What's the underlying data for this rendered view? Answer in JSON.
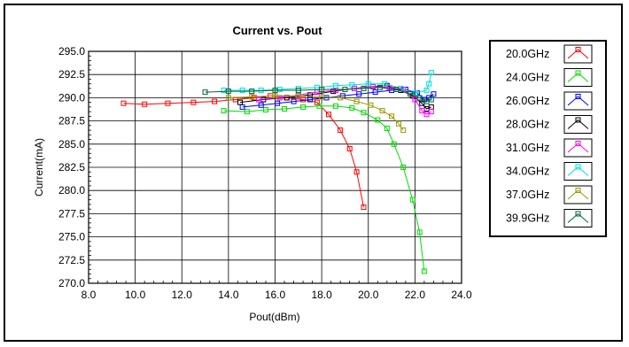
{
  "chart_data": {
    "type": "line",
    "title": "Current vs. Pout",
    "xlabel": "Pout(dBm)",
    "ylabel": "Current(mA)",
    "xlim": [
      8.0,
      24.0
    ],
    "ylim": [
      270.0,
      295.0
    ],
    "xticks": [
      "8.0",
      "10.0",
      "12.0",
      "14.0",
      "16.0",
      "18.0",
      "20.0",
      "22.0",
      "24.0"
    ],
    "yticks": [
      "270.0",
      "272.5",
      "275.0",
      "277.5",
      "280.0",
      "282.5",
      "285.0",
      "287.5",
      "290.0",
      "292.5",
      "295.0"
    ],
    "grid": true,
    "legend_position": "right",
    "series": [
      {
        "name": "20.0GHz",
        "color": "#ff0000",
        "points": [
          [
            9.5,
            289.4
          ],
          [
            10.4,
            289.3
          ],
          [
            11.4,
            289.4
          ],
          [
            12.5,
            289.5
          ],
          [
            13.4,
            289.6
          ],
          [
            14.3,
            289.8
          ],
          [
            15.1,
            290.0
          ],
          [
            15.8,
            290.2
          ],
          [
            16.5,
            290.0
          ],
          [
            17.2,
            289.8
          ],
          [
            17.8,
            289.5
          ],
          [
            18.3,
            288.2
          ],
          [
            18.8,
            286.5
          ],
          [
            19.2,
            284.5
          ],
          [
            19.5,
            282.0
          ],
          [
            19.8,
            278.2
          ]
        ]
      },
      {
        "name": "24.0GHz",
        "color": "#00dd00",
        "points": [
          [
            13.8,
            288.6
          ],
          [
            14.8,
            288.5
          ],
          [
            15.6,
            288.7
          ],
          [
            16.4,
            288.8
          ],
          [
            17.2,
            289.0
          ],
          [
            17.9,
            289.1
          ],
          [
            18.6,
            289.1
          ],
          [
            19.3,
            288.9
          ],
          [
            19.8,
            288.4
          ],
          [
            20.4,
            287.6
          ],
          [
            20.8,
            286.7
          ],
          [
            21.1,
            285.0
          ],
          [
            21.5,
            282.5
          ],
          [
            21.9,
            279.0
          ],
          [
            22.2,
            275.5
          ],
          [
            22.4,
            271.3
          ]
        ]
      },
      {
        "name": "26.0GHz",
        "color": "#0000ff",
        "points": [
          [
            14.6,
            289.0
          ],
          [
            15.4,
            289.2
          ],
          [
            16.1,
            289.4
          ],
          [
            16.8,
            289.6
          ],
          [
            17.5,
            289.8
          ],
          [
            18.2,
            290.0
          ],
          [
            18.9,
            290.2
          ],
          [
            19.6,
            290.4
          ],
          [
            20.3,
            290.6
          ],
          [
            21.0,
            290.8
          ],
          [
            21.6,
            290.9
          ],
          [
            22.1,
            290.5
          ],
          [
            22.4,
            289.8
          ],
          [
            22.6,
            290.0
          ],
          [
            22.8,
            290.4
          ]
        ]
      },
      {
        "name": "28.0GHz",
        "color": "#000000",
        "points": [
          [
            14.5,
            289.5
          ],
          [
            15.5,
            289.8
          ],
          [
            16.5,
            290.0
          ],
          [
            17.5,
            290.3
          ],
          [
            18.5,
            290.7
          ],
          [
            19.4,
            291.0
          ],
          [
            20.2,
            291.2
          ],
          [
            20.8,
            291.3
          ],
          [
            21.4,
            290.8
          ],
          [
            21.9,
            290.2
          ],
          [
            22.3,
            289.4
          ],
          [
            22.5,
            288.8
          ],
          [
            22.7,
            289.0
          ]
        ]
      },
      {
        "name": "31.0GHz",
        "color": "#ff00ff",
        "points": [
          [
            15.3,
            289.8
          ],
          [
            16.2,
            290.0
          ],
          [
            17.0,
            290.3
          ],
          [
            17.8,
            290.6
          ],
          [
            18.6,
            290.8
          ],
          [
            19.4,
            291.0
          ],
          [
            20.2,
            291.2
          ],
          [
            20.9,
            291.1
          ],
          [
            21.5,
            290.9
          ],
          [
            22.0,
            289.8
          ],
          [
            22.3,
            288.6
          ],
          [
            22.5,
            288.2
          ],
          [
            22.7,
            288.5
          ]
        ]
      },
      {
        "name": "34.0GHz",
        "color": "#00dddd",
        "points": [
          [
            13.8,
            290.8
          ],
          [
            14.6,
            290.8
          ],
          [
            15.4,
            290.8
          ],
          [
            16.2,
            290.9
          ],
          [
            17.0,
            291.0
          ],
          [
            17.8,
            291.1
          ],
          [
            18.6,
            291.3
          ],
          [
            19.3,
            291.4
          ],
          [
            20.0,
            291.5
          ],
          [
            20.7,
            291.5
          ],
          [
            21.4,
            291.0
          ],
          [
            22.0,
            290.5
          ],
          [
            22.5,
            290.8
          ],
          [
            22.6,
            291.5
          ],
          [
            22.7,
            292.7
          ]
        ]
      },
      {
        "name": "37.0GHz",
        "color": "#999900",
        "points": [
          [
            14.0,
            290.0
          ],
          [
            15.0,
            290.1
          ],
          [
            16.0,
            290.2
          ],
          [
            17.0,
            290.2
          ],
          [
            18.0,
            290.1
          ],
          [
            18.8,
            290.0
          ],
          [
            19.5,
            289.6
          ],
          [
            20.1,
            289.2
          ],
          [
            20.6,
            288.6
          ],
          [
            21.0,
            288.0
          ],
          [
            21.3,
            287.2
          ],
          [
            21.5,
            286.5
          ]
        ]
      },
      {
        "name": "39.9GHz",
        "color": "#006633",
        "points": [
          [
            13.0,
            290.6
          ],
          [
            14.0,
            290.7
          ],
          [
            15.0,
            290.7
          ],
          [
            16.0,
            290.8
          ],
          [
            17.0,
            290.8
          ],
          [
            18.0,
            290.9
          ],
          [
            19.0,
            290.9
          ],
          [
            19.8,
            291.0
          ],
          [
            20.5,
            291.1
          ],
          [
            21.2,
            290.9
          ],
          [
            21.8,
            290.4
          ],
          [
            22.2,
            290.0
          ],
          [
            22.5,
            289.6
          ],
          [
            22.7,
            289.8
          ]
        ]
      }
    ]
  }
}
